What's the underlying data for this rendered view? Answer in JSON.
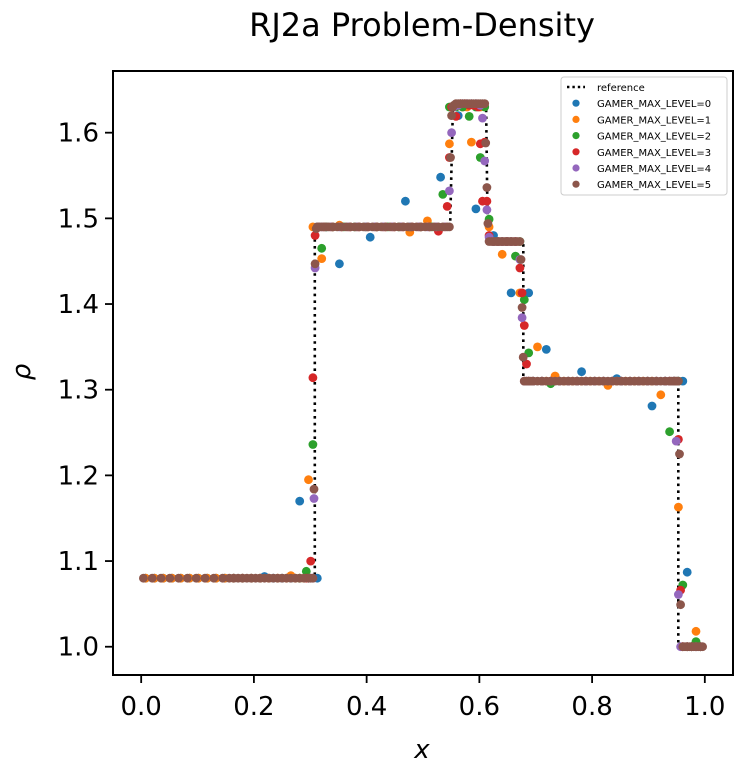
{
  "chart_data": {
    "type": "scatter",
    "title": "RJ2a Problem-Density",
    "xlabel": "x",
    "ylabel": "ρ",
    "xlim": [
      -0.05,
      1.05
    ],
    "ylim": [
      0.967,
      1.672
    ],
    "xticks": [
      "0.0",
      "0.2",
      "0.4",
      "0.6",
      "0.8",
      "1.0"
    ],
    "yticks": [
      "1.0",
      "1.1",
      "1.2",
      "1.3",
      "1.4",
      "1.5",
      "1.6"
    ],
    "grid": false,
    "legend_position": "top-right",
    "reference": {
      "name": "reference",
      "style": "dotted",
      "color": "#000000",
      "points": [
        [
          0.0,
          1.08
        ],
        [
          0.308,
          1.08
        ],
        [
          0.308,
          1.49
        ],
        [
          0.548,
          1.49
        ],
        [
          0.553,
          1.63
        ],
        [
          0.612,
          1.63
        ],
        [
          0.615,
          1.473
        ],
        [
          0.678,
          1.473
        ],
        [
          0.678,
          1.31
        ],
        [
          0.953,
          1.31
        ],
        [
          0.953,
          1.0
        ],
        [
          1.0,
          1.0
        ]
      ]
    },
    "series": [
      {
        "name": "GAMER_MAX_LEVEL=0",
        "color": "#1f77b4",
        "x": [
          0.0078,
          0.0234,
          0.0391,
          0.0547,
          0.0703,
          0.0859,
          0.1016,
          0.1172,
          0.1328,
          0.1484,
          0.1641,
          0.1797,
          0.1953,
          0.2109,
          0.2188,
          0.2344,
          0.25,
          0.2656,
          0.2813,
          0.2969,
          0.3125,
          0.3281,
          0.3516,
          0.4063,
          0.4688,
          0.5313,
          0.5625,
          0.5938,
          0.625,
          0.6563,
          0.6875,
          0.7188,
          0.7813,
          0.8438,
          0.9063,
          0.9297,
          0.9453,
          0.9531,
          0.9609,
          0.9688,
          0.9766,
          0.9844,
          0.9922
        ],
        "y": [
          1.08,
          1.08,
          1.08,
          1.08,
          1.08,
          1.08,
          1.08,
          1.08,
          1.08,
          1.08,
          1.08,
          1.08,
          1.08,
          1.08,
          1.082,
          1.08,
          1.08,
          1.08,
          1.17,
          1.08,
          1.08,
          1.49,
          1.447,
          1.478,
          1.52,
          1.548,
          1.62,
          1.511,
          1.48,
          1.413,
          1.413,
          1.347,
          1.321,
          1.313,
          1.281,
          1.31,
          1.31,
          1.31,
          1.31,
          1.087,
          1.0,
          1.0,
          1.0
        ]
      },
      {
        "name": "GAMER_MAX_LEVEL=1",
        "color": "#ff7f0e",
        "x": [
          0.0078,
          0.0234,
          0.0391,
          0.0547,
          0.0703,
          0.0859,
          0.1016,
          0.1172,
          0.1328,
          0.1484,
          0.1641,
          0.1797,
          0.1953,
          0.2109,
          0.2266,
          0.2422,
          0.2578,
          0.2656,
          0.2734,
          0.2813,
          0.2891,
          0.2969,
          0.3047,
          0.3203,
          0.3359,
          0.3516,
          0.3672,
          0.3828,
          0.3984,
          0.4141,
          0.4297,
          0.4453,
          0.4609,
          0.4766,
          0.4922,
          0.5078,
          0.5234,
          0.5391,
          0.5469,
          0.5547,
          0.5703,
          0.5781,
          0.5859,
          0.6016,
          0.6172,
          0.6328,
          0.6406,
          0.6484,
          0.6641,
          0.6719,
          0.6797,
          0.6875,
          0.7031,
          0.7188,
          0.7344,
          0.75,
          0.7656,
          0.7813,
          0.7969,
          0.8125,
          0.8281,
          0.8438,
          0.8594,
          0.875,
          0.8906,
          0.9063,
          0.9219,
          0.9375,
          0.9531,
          0.9609,
          0.9688,
          0.9766,
          0.9844,
          0.9922
        ],
        "y": [
          1.08,
          1.08,
          1.08,
          1.08,
          1.08,
          1.08,
          1.08,
          1.08,
          1.08,
          1.08,
          1.08,
          1.08,
          1.08,
          1.08,
          1.08,
          1.08,
          1.08,
          1.083,
          1.08,
          1.08,
          1.08,
          1.195,
          1.49,
          1.453,
          1.49,
          1.492,
          1.49,
          1.49,
          1.49,
          1.49,
          1.49,
          1.49,
          1.49,
          1.484,
          1.49,
          1.497,
          1.49,
          1.49,
          1.587,
          1.63,
          1.63,
          1.63,
          1.589,
          1.63,
          1.49,
          1.473,
          1.458,
          1.473,
          1.473,
          1.413,
          1.31,
          1.31,
          1.35,
          1.31,
          1.316,
          1.31,
          1.31,
          1.31,
          1.31,
          1.31,
          1.305,
          1.31,
          1.31,
          1.31,
          1.31,
          1.31,
          1.294,
          1.31,
          1.163,
          1.0,
          1.0,
          1.0,
          1.018,
          1.0
        ]
      },
      {
        "name": "GAMER_MAX_LEVEL=2",
        "color": "#2ca02c",
        "x": [
          0.2813,
          0.293,
          0.3047,
          0.3125,
          0.3203,
          0.3281,
          0.3398,
          0.3594,
          0.3789,
          0.3984,
          0.418,
          0.4375,
          0.457,
          0.4766,
          0.4961,
          0.5156,
          0.5352,
          0.5469,
          0.5586,
          0.5703,
          0.582,
          0.5938,
          0.6016,
          0.6094,
          0.6172,
          0.625,
          0.6328,
          0.6406,
          0.6484,
          0.6563,
          0.6641,
          0.6719,
          0.6797,
          0.6875,
          0.6953,
          0.7109,
          0.7266,
          0.7422,
          0.7578,
          0.7734,
          0.7891,
          0.8047,
          0.8203,
          0.8359,
          0.8516,
          0.8672,
          0.8828,
          0.8984,
          0.9141,
          0.9297,
          0.9375,
          0.9453,
          0.9531,
          0.9609,
          0.9688,
          0.9766,
          0.9844,
          0.9922
        ],
        "y": [
          1.08,
          1.088,
          1.236,
          1.49,
          1.465,
          1.49,
          1.49,
          1.49,
          1.49,
          1.49,
          1.49,
          1.49,
          1.49,
          1.49,
          1.49,
          1.49,
          1.528,
          1.63,
          1.63,
          1.63,
          1.619,
          1.63,
          1.571,
          1.63,
          1.499,
          1.473,
          1.473,
          1.473,
          1.473,
          1.473,
          1.456,
          1.473,
          1.405,
          1.343,
          1.31,
          1.31,
          1.307,
          1.31,
          1.31,
          1.31,
          1.31,
          1.31,
          1.31,
          1.31,
          1.31,
          1.31,
          1.31,
          1.31,
          1.31,
          1.31,
          1.251,
          1.31,
          1.31,
          1.072,
          1.0,
          1.0,
          1.006,
          1.0
        ]
      },
      {
        "name": "GAMER_MAX_LEVEL=3",
        "color": "#d62728",
        "x": [
          0.293,
          0.2969,
          0.3008,
          0.3047,
          0.3086,
          0.3145,
          0.3242,
          0.3398,
          0.3555,
          0.3711,
          0.3867,
          0.4023,
          0.418,
          0.4336,
          0.4492,
          0.4648,
          0.4805,
          0.4961,
          0.5117,
          0.5273,
          0.543,
          0.5469,
          0.5508,
          0.5586,
          0.5664,
          0.5742,
          0.582,
          0.5898,
          0.5977,
          0.6016,
          0.6055,
          0.6094,
          0.6133,
          0.6172,
          0.625,
          0.6328,
          0.6406,
          0.6484,
          0.6563,
          0.6641,
          0.6719,
          0.6758,
          0.6797,
          0.6836,
          0.6875,
          0.6953,
          0.7109,
          0.7266,
          0.7422,
          0.7578,
          0.7734,
          0.7891,
          0.8047,
          0.8203,
          0.8359,
          0.8516,
          0.8672,
          0.8828,
          0.8984,
          0.9141,
          0.9297,
          0.9375,
          0.9453,
          0.9531,
          0.957,
          0.9609,
          0.9688,
          0.9766,
          0.9844,
          0.9922
        ],
        "y": [
          1.08,
          1.08,
          1.1,
          1.314,
          1.48,
          1.49,
          1.49,
          1.49,
          1.49,
          1.49,
          1.49,
          1.49,
          1.49,
          1.49,
          1.49,
          1.49,
          1.49,
          1.49,
          1.49,
          1.485,
          1.514,
          1.571,
          1.63,
          1.619,
          1.634,
          1.634,
          1.632,
          1.632,
          1.63,
          1.587,
          1.52,
          1.589,
          1.52,
          1.48,
          1.473,
          1.473,
          1.473,
          1.473,
          1.473,
          1.473,
          1.442,
          1.413,
          1.375,
          1.33,
          1.31,
          1.31,
          1.31,
          1.31,
          1.31,
          1.31,
          1.31,
          1.31,
          1.31,
          1.31,
          1.31,
          1.31,
          1.31,
          1.31,
          1.31,
          1.31,
          1.31,
          1.31,
          1.31,
          1.242,
          1.066,
          1.0,
          1.0,
          1.0,
          1.0,
          1.0
        ]
      },
      {
        "name": "GAMER_MAX_LEVEL=4",
        "color": "#9467bd",
        "x": [
          0.3008,
          0.3047,
          0.3066,
          0.3086,
          0.3125,
          0.3203,
          0.3359,
          0.3516,
          0.3672,
          0.3828,
          0.3984,
          0.4141,
          0.4297,
          0.4453,
          0.4609,
          0.4766,
          0.4922,
          0.5078,
          0.5234,
          0.5391,
          0.5469,
          0.5508,
          0.5547,
          0.5625,
          0.5703,
          0.5781,
          0.5859,
          0.5938,
          0.6016,
          0.6055,
          0.6094,
          0.6133,
          0.6172,
          0.625,
          0.6328,
          0.6406,
          0.6484,
          0.6563,
          0.6641,
          0.6719,
          0.6758,
          0.6797,
          0.6836,
          0.6875,
          0.6953,
          0.7109,
          0.7266,
          0.7422,
          0.7578,
          0.7734,
          0.7891,
          0.8047,
          0.8203,
          0.8359,
          0.8516,
          0.8672,
          0.8828,
          0.8984,
          0.9141,
          0.9297,
          0.9375,
          0.9453,
          0.9492,
          0.9531,
          0.957,
          0.9609,
          0.9688,
          0.9766,
          0.9844,
          0.9922
        ],
        "y": [
          1.08,
          1.08,
          1.173,
          1.442,
          1.49,
          1.49,
          1.49,
          1.49,
          1.49,
          1.49,
          1.49,
          1.49,
          1.49,
          1.49,
          1.49,
          1.49,
          1.49,
          1.49,
          1.49,
          1.49,
          1.532,
          1.6,
          1.63,
          1.632,
          1.634,
          1.634,
          1.634,
          1.634,
          1.632,
          1.617,
          1.567,
          1.51,
          1.478,
          1.473,
          1.473,
          1.473,
          1.473,
          1.473,
          1.473,
          1.452,
          1.384,
          1.31,
          1.31,
          1.31,
          1.31,
          1.31,
          1.31,
          1.31,
          1.31,
          1.31,
          1.31,
          1.31,
          1.31,
          1.31,
          1.31,
          1.31,
          1.31,
          1.31,
          1.31,
          1.31,
          1.31,
          1.31,
          1.24,
          1.061,
          1.0,
          1.0,
          1.0,
          1.0,
          1.0,
          1.0
        ]
      },
      {
        "name": "GAMER_MAX_LEVEL=5",
        "color": "#8c564b",
        "x": [
          0.0039,
          0.0195,
          0.0352,
          0.0508,
          0.0664,
          0.082,
          0.0977,
          0.1133,
          0.1289,
          0.1445,
          0.1563,
          0.1641,
          0.1719,
          0.1797,
          0.1875,
          0.1953,
          0.2031,
          0.2109,
          0.2188,
          0.2266,
          0.2344,
          0.2422,
          0.25,
          0.2578,
          0.2656,
          0.2734,
          0.2813,
          0.2891,
          0.2969,
          0.3008,
          0.3047,
          0.3066,
          0.3086,
          0.3105,
          0.3125,
          0.3164,
          0.3203,
          0.3242,
          0.3281,
          0.332,
          0.3398,
          0.3477,
          0.3555,
          0.3633,
          0.3711,
          0.3789,
          0.3867,
          0.3945,
          0.4023,
          0.4102,
          0.418,
          0.4258,
          0.4336,
          0.4414,
          0.4492,
          0.457,
          0.4648,
          0.4727,
          0.4805,
          0.4883,
          0.4961,
          0.5039,
          0.5117,
          0.5195,
          0.5273,
          0.5352,
          0.543,
          0.5469,
          0.5488,
          0.5508,
          0.5527,
          0.5547,
          0.5586,
          0.5625,
          0.5664,
          0.5703,
          0.5742,
          0.5781,
          0.582,
          0.5859,
          0.5898,
          0.5938,
          0.5977,
          0.6016,
          0.6055,
          0.6094,
          0.6113,
          0.6133,
          0.6152,
          0.6172,
          0.6211,
          0.625,
          0.6289,
          0.6328,
          0.6367,
          0.6406,
          0.6445,
          0.6484,
          0.6523,
          0.6563,
          0.6602,
          0.6641,
          0.668,
          0.6719,
          0.6738,
          0.6758,
          0.6777,
          0.6797,
          0.6836,
          0.6875,
          0.6914,
          0.6953,
          0.7031,
          0.7109,
          0.7188,
          0.7266,
          0.7344,
          0.7422,
          0.75,
          0.7578,
          0.7656,
          0.7734,
          0.7813,
          0.7891,
          0.7969,
          0.8047,
          0.8125,
          0.8203,
          0.8281,
          0.8359,
          0.8438,
          0.8516,
          0.8594,
          0.8672,
          0.875,
          0.8828,
          0.8906,
          0.8984,
          0.9063,
          0.9141,
          0.9219,
          0.9297,
          0.9375,
          0.9414,
          0.9453,
          0.9473,
          0.9492,
          0.9512,
          0.9531,
          0.9551,
          0.957,
          0.9609,
          0.9648,
          0.9688,
          0.9727,
          0.9766,
          0.9805,
          0.9844,
          0.9883,
          0.9922,
          0.9961
        ],
        "y": [
          1.08,
          1.08,
          1.08,
          1.08,
          1.08,
          1.08,
          1.08,
          1.08,
          1.08,
          1.08,
          1.08,
          1.08,
          1.08,
          1.08,
          1.08,
          1.08,
          1.08,
          1.08,
          1.08,
          1.08,
          1.08,
          1.08,
          1.08,
          1.08,
          1.08,
          1.08,
          1.08,
          1.08,
          1.08,
          1.08,
          1.08,
          1.184,
          1.447,
          1.488,
          1.49,
          1.49,
          1.49,
          1.49,
          1.49,
          1.49,
          1.49,
          1.49,
          1.49,
          1.49,
          1.49,
          1.49,
          1.49,
          1.49,
          1.49,
          1.49,
          1.49,
          1.49,
          1.49,
          1.49,
          1.49,
          1.49,
          1.49,
          1.49,
          1.49,
          1.49,
          1.49,
          1.49,
          1.49,
          1.49,
          1.49,
          1.49,
          1.49,
          1.49,
          1.571,
          1.62,
          1.63,
          1.632,
          1.634,
          1.634,
          1.634,
          1.634,
          1.634,
          1.634,
          1.634,
          1.634,
          1.634,
          1.634,
          1.634,
          1.634,
          1.634,
          1.634,
          1.588,
          1.536,
          1.494,
          1.473,
          1.473,
          1.473,
          1.473,
          1.473,
          1.473,
          1.473,
          1.473,
          1.473,
          1.473,
          1.473,
          1.473,
          1.473,
          1.473,
          1.473,
          1.452,
          1.396,
          1.338,
          1.31,
          1.31,
          1.31,
          1.31,
          1.31,
          1.31,
          1.31,
          1.31,
          1.31,
          1.31,
          1.31,
          1.31,
          1.31,
          1.31,
          1.31,
          1.31,
          1.31,
          1.31,
          1.31,
          1.31,
          1.31,
          1.31,
          1.31,
          1.31,
          1.31,
          1.31,
          1.31,
          1.31,
          1.31,
          1.31,
          1.31,
          1.31,
          1.31,
          1.31,
          1.31,
          1.31,
          1.31,
          1.31,
          1.31,
          1.31,
          1.31,
          1.31,
          1.225,
          1.049,
          1.0,
          1.0,
          1.0,
          1.0,
          1.0,
          1.0,
          1.0,
          1.0,
          1.0,
          1.0
        ]
      }
    ]
  }
}
